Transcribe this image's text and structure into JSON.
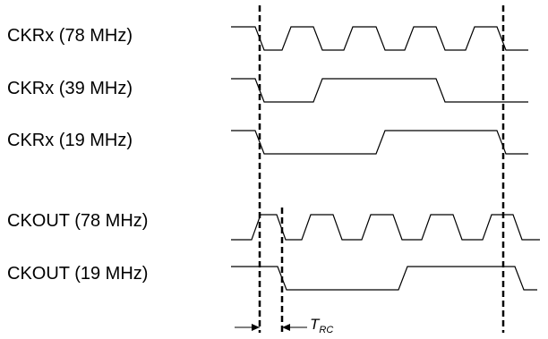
{
  "signals": [
    {
      "id": "ckrx-78",
      "label": "CKRx (78 MHz)"
    },
    {
      "id": "ckrx-39",
      "label": "CKRx (39 MHz)"
    },
    {
      "id": "ckrx-19",
      "label": "CKRx (19 MHz)"
    },
    {
      "id": "ckout-78",
      "label": "CKOUT (78 MHz)"
    },
    {
      "id": "ckout-19",
      "label": "CKOUT (19 MHz)"
    }
  ],
  "trc": {
    "main": "T",
    "sub": "RC"
  }
}
